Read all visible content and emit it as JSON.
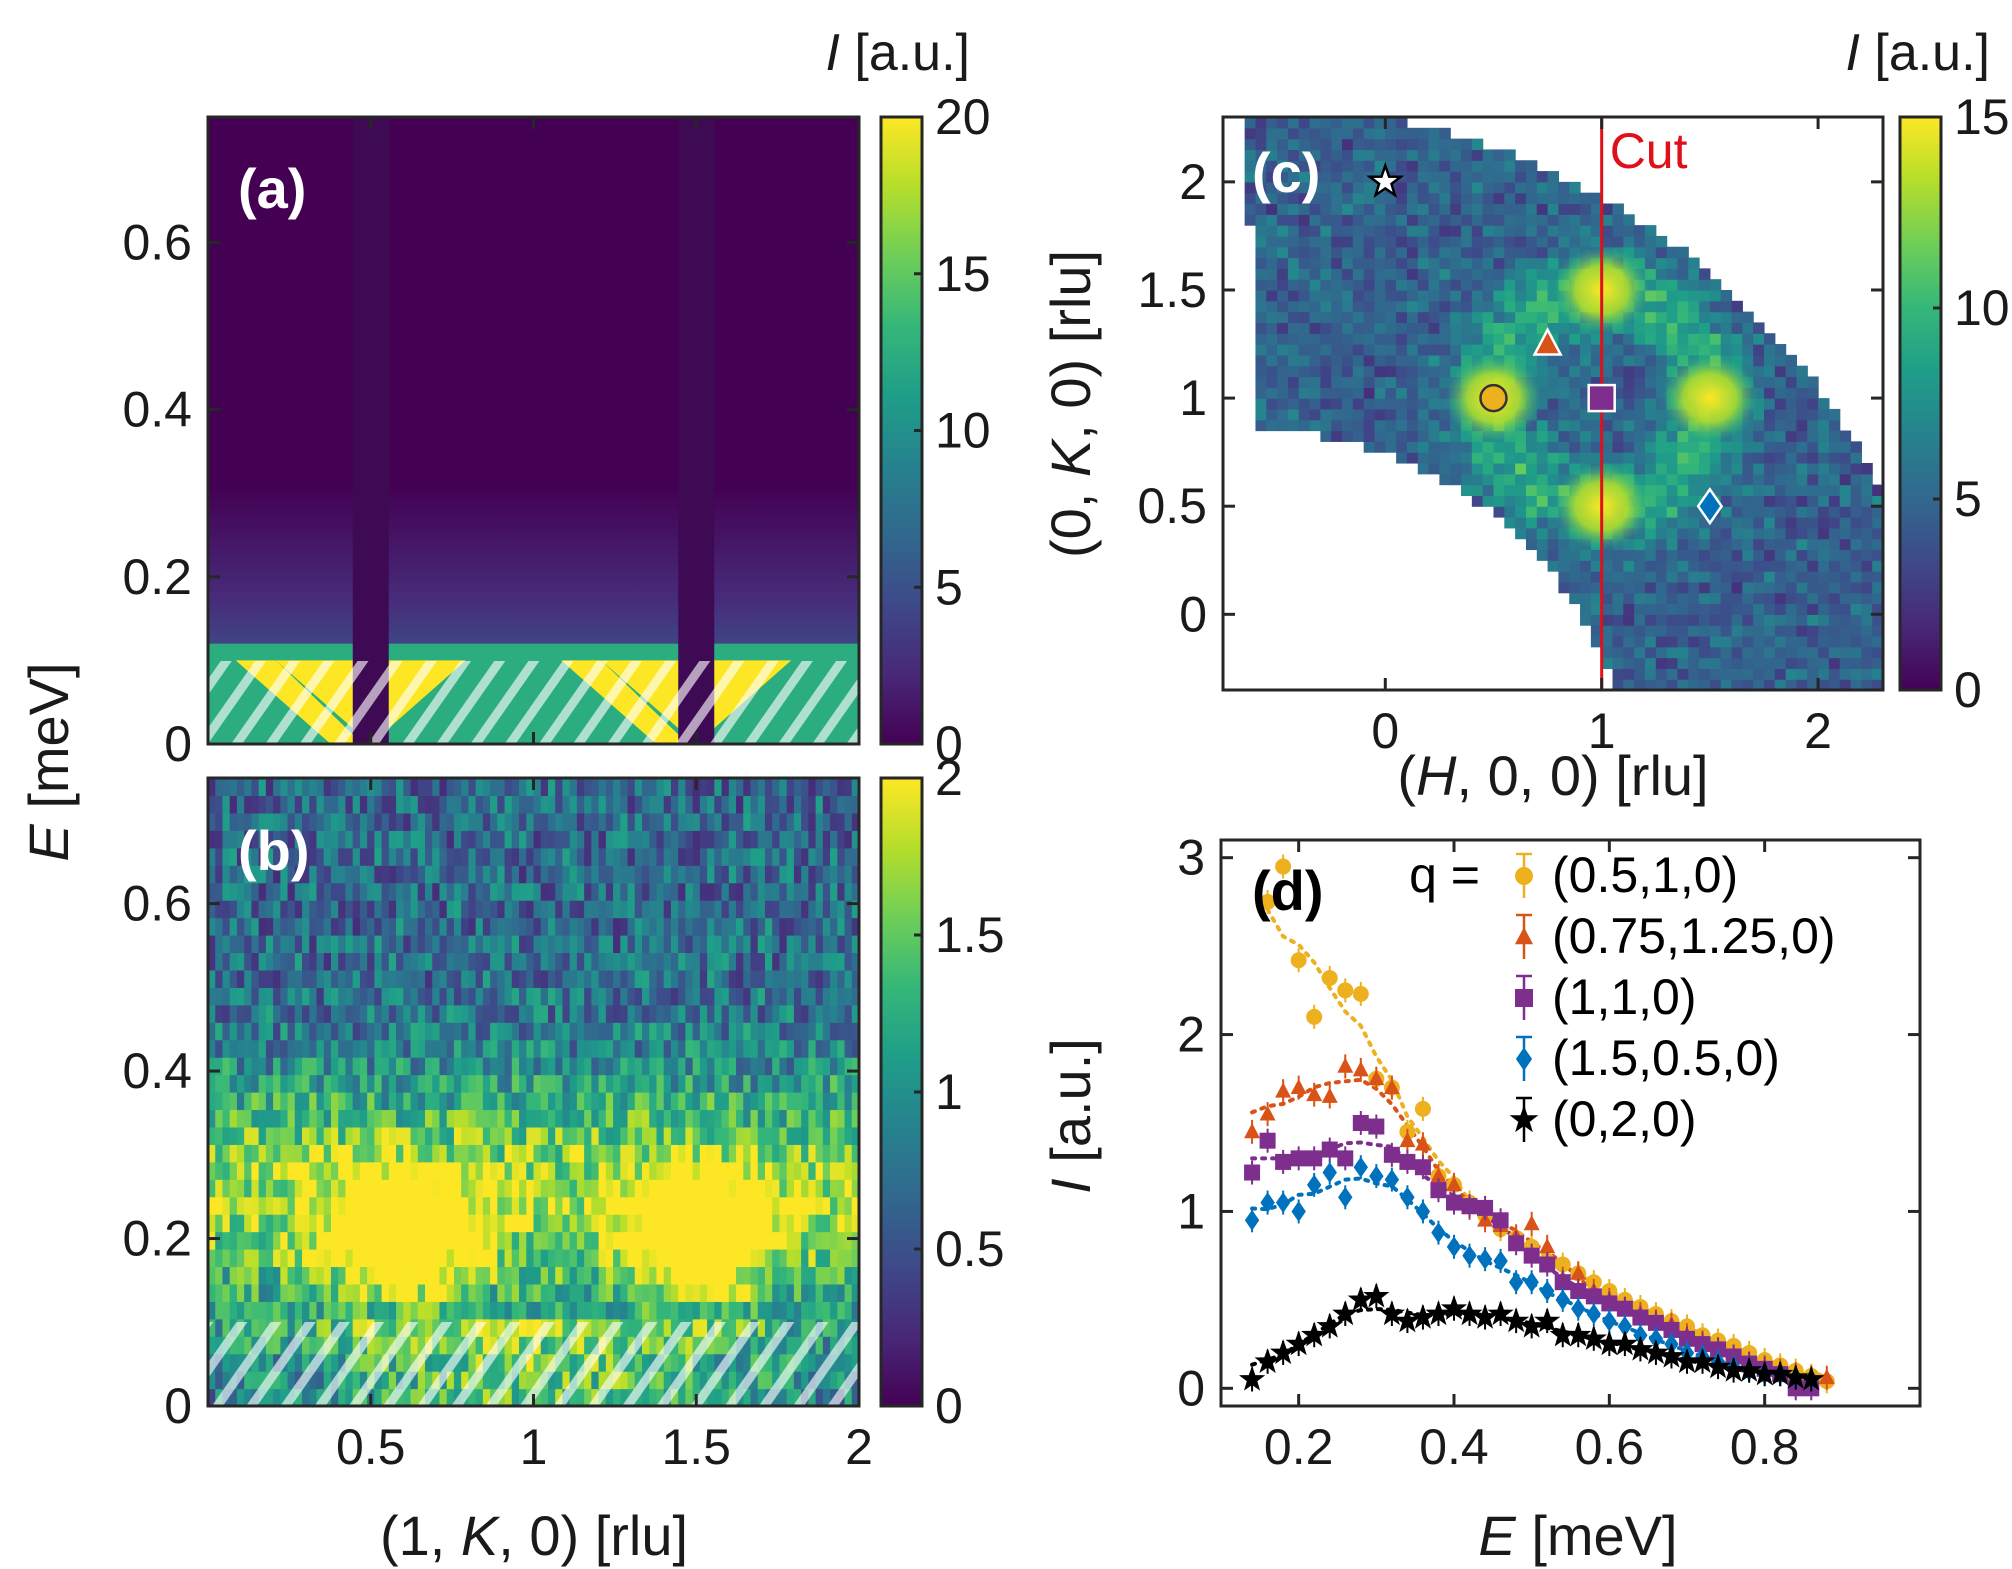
{
  "figure_labels": {
    "a": "(a)",
    "b": "(b)",
    "c": "(c)",
    "d": "(d)",
    "cut": "Cut"
  },
  "colors": {
    "viridis": [
      "#440154",
      "#482878",
      "#3e4989",
      "#31688e",
      "#26828e",
      "#1f9e89",
      "#35b779",
      "#6ece58",
      "#b5de2b",
      "#fde725"
    ],
    "cut_line": "#e0101a",
    "series_yellow": "#edb120",
    "series_orange": "#d95319",
    "series_purple": "#7e2f8e",
    "series_blue": "#0072bd",
    "series_black": "#000000"
  },
  "chart_data": [
    {
      "id": "a",
      "type": "heatmap",
      "title": "",
      "xlim": [
        0,
        2
      ],
      "ylim": [
        0,
        0.75
      ],
      "xticks": [
        "0.5",
        "1",
        "1.5",
        "2"
      ],
      "yticks": [
        "0",
        "0.2",
        "0.4",
        "0.6"
      ],
      "xlabel": "",
      "ylabel": "",
      "colorbar": {
        "label_symbol": "I",
        "label_unit": " [a.u.]",
        "range": [
          0,
          20
        ],
        "ticks": [
          "0",
          "5",
          "10",
          "15",
          "20"
        ]
      },
      "features": {
        "dark_stripes_K": [
          0.5,
          1.5
        ],
        "hatched_below_E": 0.1,
        "gap_energy_meV": 0.12
      }
    },
    {
      "id": "b",
      "type": "heatmap",
      "xlim": [
        0,
        2
      ],
      "ylim": [
        0,
        0.75
      ],
      "xticks": [
        "0.5",
        "1",
        "1.5",
        "2"
      ],
      "yticks": [
        "0",
        "0.2",
        "0.4",
        "0.6"
      ],
      "xlabel_parts": [
        "(1, ",
        "K",
        ", 0) [rlu]"
      ],
      "shared_ylabel_parts": [
        "E",
        " [meV]"
      ],
      "colorbar": {
        "range": [
          0,
          2
        ],
        "ticks": [
          "0",
          "0.5",
          "1",
          "1.5",
          "2"
        ]
      },
      "features": {
        "hot_K": [
          0.6,
          1.5
        ],
        "hot_E": 0.2,
        "hatched_below_E": 0.1
      }
    },
    {
      "id": "c",
      "type": "heatmap",
      "xlim": [
        -0.75,
        2.3
      ],
      "ylim": [
        -0.35,
        2.3
      ],
      "xticks": [
        "0",
        "1",
        "2"
      ],
      "yticks": [
        "0",
        "0.5",
        "1",
        "1.5",
        "2"
      ],
      "xlabel_parts": [
        "(",
        "H",
        ", 0, 0) [rlu]"
      ],
      "ylabel_parts": [
        "(0, ",
        "K",
        ", 0) [rlu]"
      ],
      "colorbar": {
        "label_symbol": "I",
        "label_unit": " [a.u.]",
        "range": [
          0,
          15
        ],
        "ticks": [
          "0",
          "5",
          "10",
          "15"
        ]
      },
      "cut_H": 1,
      "bright_spots": [
        [
          0.5,
          1
        ],
        [
          1,
          1.5
        ],
        [
          1,
          0.5
        ],
        [
          1.5,
          1
        ]
      ],
      "markers": [
        {
          "shape": "star",
          "H": 0,
          "K": 2
        },
        {
          "shape": "triangle",
          "H": 0.75,
          "K": 1.25
        },
        {
          "shape": "circle",
          "H": 0.5,
          "K": 1
        },
        {
          "shape": "square",
          "H": 1,
          "K": 1
        },
        {
          "shape": "diamond",
          "H": 1.5,
          "K": 0.5
        }
      ]
    },
    {
      "id": "d",
      "type": "scatter",
      "xlim": [
        0.1,
        1.0
      ],
      "ylim": [
        -0.1,
        3.1
      ],
      "xticks": [
        "0.2",
        "0.4",
        "0.6",
        "0.8"
      ],
      "yticks": [
        "0",
        "1",
        "2",
        "3"
      ],
      "xlabel_parts": [
        "E",
        " [meV]"
      ],
      "ylabel_parts": [
        "I",
        " [a.u.]"
      ],
      "legend_title": "q =",
      "legend_position": "top-right",
      "series": [
        {
          "name": "(0.5,1,0)",
          "marker": "circle",
          "color": "#edb120",
          "x": [
            0.16,
            0.18,
            0.2,
            0.22,
            0.24,
            0.26,
            0.28,
            0.3,
            0.32,
            0.34,
            0.36,
            0.38,
            0.4,
            0.42,
            0.44,
            0.46,
            0.48,
            0.5,
            0.52,
            0.54,
            0.56,
            0.58,
            0.6,
            0.62,
            0.64,
            0.66,
            0.68,
            0.7,
            0.72,
            0.74,
            0.76,
            0.78,
            0.8,
            0.82,
            0.84,
            0.86,
            0.88
          ],
          "y": [
            2.75,
            2.95,
            2.42,
            2.1,
            2.32,
            2.25,
            2.23,
            1.75,
            1.7,
            1.45,
            1.58,
            1.2,
            1.15,
            1.05,
            0.98,
            0.9,
            0.85,
            0.8,
            0.72,
            0.7,
            0.65,
            0.6,
            0.55,
            0.5,
            0.46,
            0.42,
            0.38,
            0.35,
            0.3,
            0.27,
            0.24,
            0.2,
            0.16,
            0.13,
            0.1,
            0.07,
            0.04
          ]
        },
        {
          "name": "(0.75,1.25,0)",
          "marker": "triangle",
          "color": "#d95319",
          "x": [
            0.14,
            0.16,
            0.18,
            0.2,
            0.22,
            0.24,
            0.26,
            0.28,
            0.3,
            0.32,
            0.34,
            0.36,
            0.38,
            0.4,
            0.42,
            0.44,
            0.46,
            0.48,
            0.5,
            0.52,
            0.54,
            0.56,
            0.58,
            0.6,
            0.62,
            0.64,
            0.66,
            0.68,
            0.7,
            0.72,
            0.74,
            0.76,
            0.78,
            0.8,
            0.82,
            0.84,
            0.86,
            0.88
          ],
          "y": [
            1.45,
            1.55,
            1.68,
            1.7,
            1.66,
            1.65,
            1.82,
            1.8,
            1.75,
            1.7,
            1.4,
            1.38,
            1.2,
            1.15,
            1.02,
            0.95,
            0.92,
            0.86,
            0.93,
            0.8,
            0.62,
            0.65,
            0.55,
            0.5,
            0.45,
            0.42,
            0.38,
            0.36,
            0.3,
            0.26,
            0.22,
            0.18,
            0.14,
            0.12,
            0.1,
            0.08,
            0.06,
            0.06
          ]
        },
        {
          "name": "(1,1,0)",
          "marker": "square",
          "color": "#7e2f8e",
          "x": [
            0.14,
            0.16,
            0.18,
            0.2,
            0.22,
            0.24,
            0.26,
            0.28,
            0.3,
            0.32,
            0.34,
            0.36,
            0.38,
            0.4,
            0.42,
            0.44,
            0.46,
            0.48,
            0.5,
            0.52,
            0.54,
            0.56,
            0.58,
            0.6,
            0.62,
            0.64,
            0.66,
            0.68,
            0.7,
            0.72,
            0.74,
            0.76,
            0.78,
            0.8,
            0.82,
            0.84,
            0.86
          ],
          "y": [
            1.22,
            1.4,
            1.28,
            1.3,
            1.3,
            1.35,
            1.3,
            1.5,
            1.48,
            1.32,
            1.28,
            1.25,
            1.12,
            1.05,
            1.03,
            1.02,
            0.95,
            0.82,
            0.75,
            0.7,
            0.6,
            0.55,
            0.52,
            0.48,
            0.45,
            0.4,
            0.37,
            0.33,
            0.28,
            0.25,
            0.22,
            0.18,
            0.14,
            0.11,
            0.08,
            0.0,
            0.0
          ]
        },
        {
          "name": "(1.5,0.5,0)",
          "marker": "diamond",
          "color": "#0072bd",
          "x": [
            0.14,
            0.16,
            0.18,
            0.2,
            0.22,
            0.24,
            0.26,
            0.28,
            0.3,
            0.32,
            0.34,
            0.36,
            0.38,
            0.4,
            0.42,
            0.44,
            0.46,
            0.48,
            0.5,
            0.52,
            0.54,
            0.56,
            0.58,
            0.6,
            0.62,
            0.64,
            0.66,
            0.68,
            0.7,
            0.72,
            0.74,
            0.76,
            0.78,
            0.8,
            0.82,
            0.84,
            0.86
          ],
          "y": [
            0.95,
            1.05,
            1.05,
            1.0,
            1.15,
            1.22,
            1.08,
            1.25,
            1.2,
            1.18,
            1.08,
            1.0,
            0.88,
            0.8,
            0.75,
            0.73,
            0.72,
            0.6,
            0.6,
            0.55,
            0.5,
            0.45,
            0.42,
            0.38,
            0.35,
            0.3,
            0.28,
            0.25,
            0.2,
            0.18,
            0.15,
            0.12,
            0.1,
            0.08,
            0.08,
            0.06,
            0.05
          ]
        },
        {
          "name": "(0,2,0)",
          "marker": "star",
          "color": "#000000",
          "x": [
            0.14,
            0.16,
            0.18,
            0.2,
            0.22,
            0.24,
            0.26,
            0.28,
            0.3,
            0.32,
            0.34,
            0.36,
            0.38,
            0.4,
            0.42,
            0.44,
            0.46,
            0.48,
            0.5,
            0.52,
            0.54,
            0.56,
            0.58,
            0.6,
            0.62,
            0.64,
            0.66,
            0.68,
            0.7,
            0.72,
            0.74,
            0.76,
            0.78,
            0.8,
            0.82,
            0.84,
            0.86
          ],
          "y": [
            0.05,
            0.15,
            0.2,
            0.25,
            0.3,
            0.35,
            0.42,
            0.5,
            0.52,
            0.42,
            0.38,
            0.4,
            0.42,
            0.45,
            0.42,
            0.4,
            0.42,
            0.38,
            0.35,
            0.38,
            0.3,
            0.3,
            0.28,
            0.25,
            0.25,
            0.22,
            0.2,
            0.18,
            0.15,
            0.15,
            0.12,
            0.1,
            0.1,
            0.08,
            0.08,
            0.06,
            0.05
          ]
        }
      ]
    }
  ]
}
